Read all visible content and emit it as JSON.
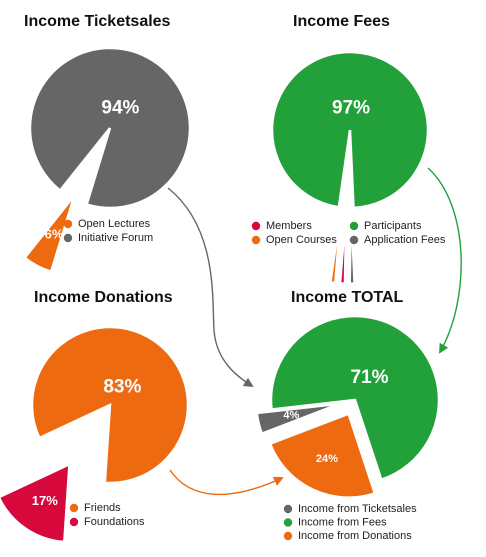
{
  "chart_data": [
    {
      "type": "pie",
      "id": "ticketsales",
      "title": "Income Ticketsales",
      "slices": [
        {
          "name": "Open Lectures",
          "value": 6,
          "label": "6%",
          "color": "#ee6a10",
          "exploded": true
        },
        {
          "name": "Initiative Forum",
          "value": 94,
          "label": "94%",
          "color": "#666666",
          "exploded": false
        }
      ],
      "legend_columns": 1
    },
    {
      "type": "pie",
      "id": "fees",
      "title": "Income Fees",
      "slices": [
        {
          "name": "Members",
          "value": 1,
          "label": "",
          "color": "#d6083c",
          "exploded": true
        },
        {
          "name": "Open Courses",
          "value": 1,
          "label": "",
          "color": "#ee6a10",
          "exploded": true
        },
        {
          "name": "Participants",
          "value": 97,
          "label": "97%",
          "color": "#22a03a",
          "exploded": false
        },
        {
          "name": "Application Fees",
          "value": 1,
          "label": "",
          "color": "#666666",
          "exploded": true
        }
      ],
      "legend_columns": 2
    },
    {
      "type": "pie",
      "id": "donations",
      "title": "Income Donations",
      "slices": [
        {
          "name": "Friends",
          "value": 83,
          "label": "83%",
          "color": "#ee6a10",
          "exploded": false
        },
        {
          "name": "Foundations",
          "value": 17,
          "label": "17%",
          "color": "#d6083c",
          "exploded": true
        }
      ],
      "legend_columns": 1
    },
    {
      "type": "pie",
      "id": "total",
      "title": "Income TOTAL",
      "slices": [
        {
          "name": "Income from Ticketsales",
          "value": 4,
          "label": "4%",
          "color": "#666666",
          "exploded": true
        },
        {
          "name": "Income from Fees",
          "value": 71,
          "label": "71%",
          "color": "#22a03a",
          "exploded": false
        },
        {
          "name": "Income from Donations",
          "value": 24,
          "label": "24%",
          "color": "#ee6a10",
          "exploded": true
        }
      ],
      "legend_columns": 1
    }
  ],
  "connectors": [
    {
      "from": "ticketsales",
      "to": "total",
      "color": "#666666"
    },
    {
      "from": "fees",
      "to": "total",
      "color": "#22a03a"
    },
    {
      "from": "donations",
      "to": "total",
      "color": "#ee6a10"
    }
  ]
}
